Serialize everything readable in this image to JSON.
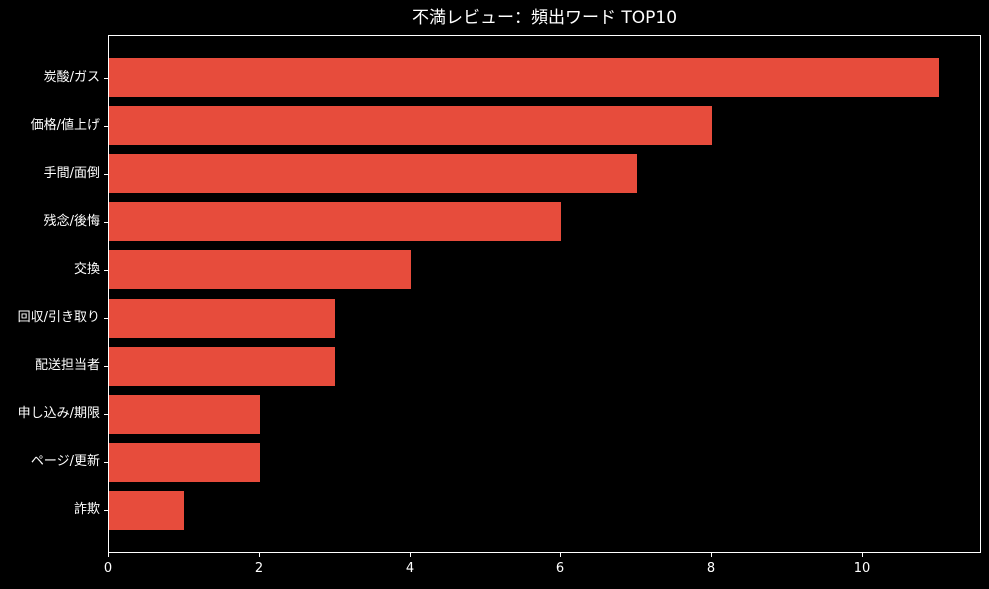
{
  "title": "不満レビュー：頻出ワード TOP10",
  "colors": {
    "background": "#000000",
    "bar": "#e74c3c",
    "text": "#ffffff",
    "spine": "#ffffff"
  },
  "chart_data": {
    "type": "bar",
    "orientation": "horizontal",
    "title": "不満レビュー：頻出ワード TOP10",
    "categories": [
      "炭酸/ガス",
      "価格/値上げ",
      "手間/面倒",
      "残念/後悔",
      "交換",
      "回収/引き取り",
      "配送担当者",
      "申し込み/期限",
      "ページ/更新",
      "詐欺"
    ],
    "values": [
      11,
      8,
      7,
      6,
      4,
      3,
      3,
      2,
      2,
      1
    ],
    "xlabel": "",
    "ylabel": "",
    "xlim": [
      0,
      11.55
    ],
    "xticks": [
      0,
      2,
      4,
      6,
      8,
      10
    ],
    "grid": false,
    "legend": null,
    "value_order": "descending_top_to_bottom"
  }
}
